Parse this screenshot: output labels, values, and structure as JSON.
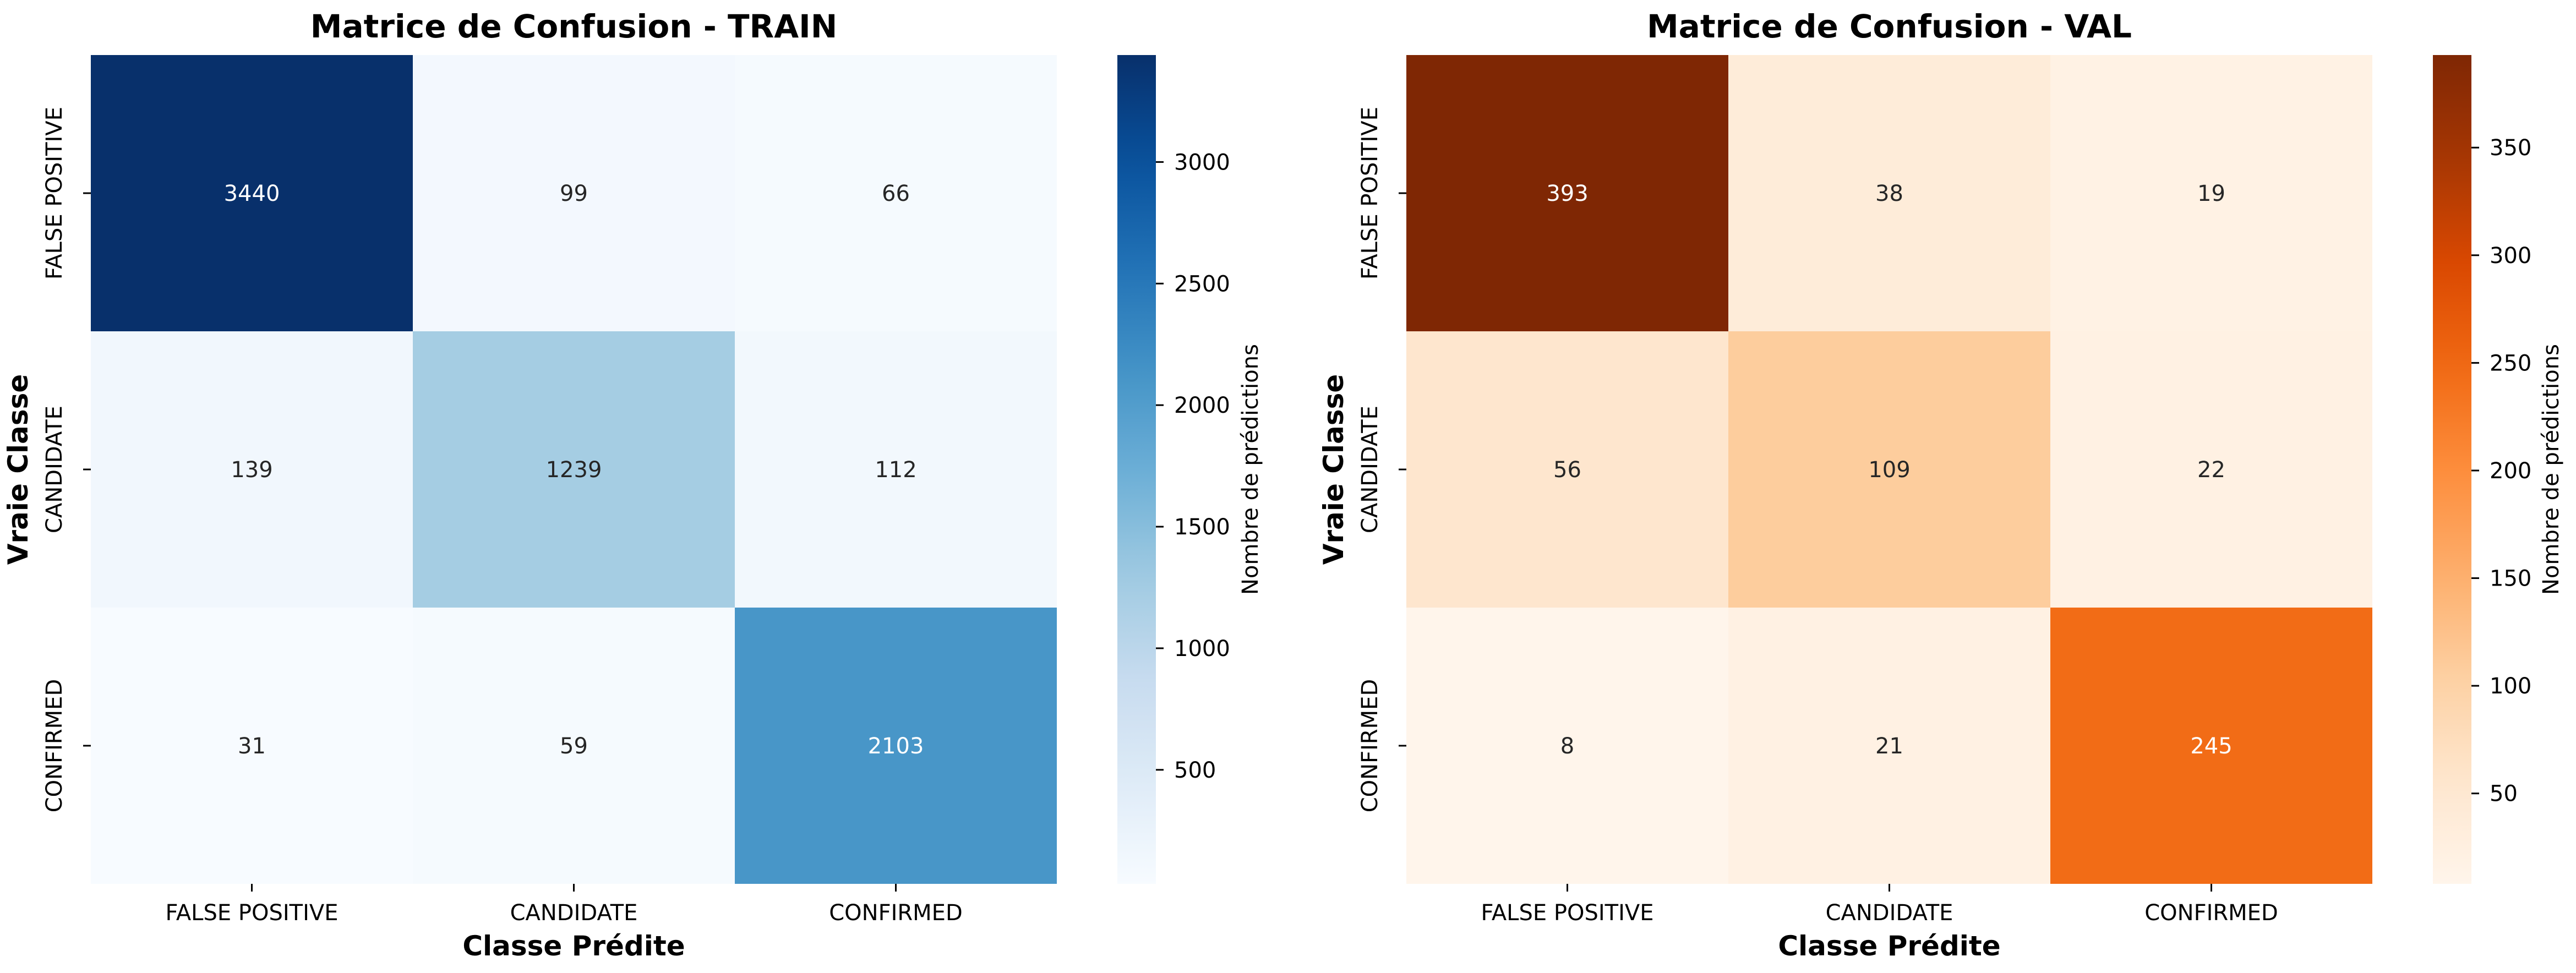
{
  "chart_data": [
    {
      "type": "heatmap",
      "title": "Matrice de Confusion - TRAIN",
      "xlabel": "Classe Prédite",
      "ylabel": "Vraie Classe",
      "x_categories": [
        "FALSE POSITIVE",
        "CANDIDATE",
        "CONFIRMED"
      ],
      "y_categories": [
        "FALSE POSITIVE",
        "CANDIDATE",
        "CONFIRMED"
      ],
      "values": [
        [
          3440,
          99,
          66
        ],
        [
          139,
          1239,
          112
        ],
        [
          31,
          59,
          2103
        ]
      ],
      "colormap": "Blues",
      "colors": {
        "low": "#f7fbff",
        "high": "#08306b"
      },
      "colorbar": {
        "label": "Nombre de prédictions",
        "range": [
          31,
          3440
        ],
        "ticks": [
          500,
          1000,
          1500,
          2000,
          2500,
          3000
        ]
      }
    },
    {
      "type": "heatmap",
      "title": "Matrice de Confusion - VAL",
      "xlabel": "Classe Prédite",
      "ylabel": "Vraie Classe",
      "x_categories": [
        "FALSE POSITIVE",
        "CANDIDATE",
        "CONFIRMED"
      ],
      "y_categories": [
        "FALSE POSITIVE",
        "CANDIDATE",
        "CONFIRMED"
      ],
      "values": [
        [
          393,
          38,
          19
        ],
        [
          56,
          109,
          22
        ],
        [
          8,
          21,
          245
        ]
      ],
      "colormap": "Oranges",
      "colors": {
        "low": "#fff5eb",
        "high": "#7f2704"
      },
      "colorbar": {
        "label": "Nombre de prédictions",
        "range": [
          8,
          393
        ],
        "ticks": [
          50,
          100,
          150,
          200,
          250,
          300,
          350
        ]
      }
    }
  ]
}
